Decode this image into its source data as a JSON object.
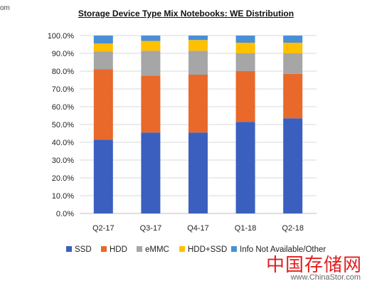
{
  "crop_text": "om",
  "chart_data": {
    "type": "bar",
    "stacked": true,
    "title": "Storage Device Type Mix Notebooks: WE Distribution",
    "xlabel": "",
    "ylabel": "",
    "categories": [
      "Q2-17",
      "Q3-17",
      "Q4-17",
      "Q1-18",
      "Q2-18"
    ],
    "ylim": [
      0,
      100
    ],
    "yticks": [
      "0.0%",
      "10.0%",
      "20.0%",
      "30.0%",
      "40.0%",
      "50.0%",
      "60.0%",
      "70.0%",
      "80.0%",
      "90.0%",
      "100.0%"
    ],
    "grid": true,
    "legend_position": "bottom",
    "series": [
      {
        "name": "SSD",
        "color": "#3a5fbf",
        "values": [
          41.5,
          45.5,
          45.5,
          51.5,
          53.5
        ]
      },
      {
        "name": "HDD",
        "color": "#e8692a",
        "values": [
          39.5,
          32,
          32.5,
          28.5,
          25
        ]
      },
      {
        "name": "eMMC",
        "color": "#a6a6a6",
        "values": [
          10,
          14,
          13.5,
          10,
          11.5
        ]
      },
      {
        "name": "HDD+SSD",
        "color": "#ffc000",
        "values": [
          4.5,
          5.5,
          6,
          6,
          6
        ]
      },
      {
        "name": "Info Not Available/Other",
        "color": "#4a8fd6",
        "values": [
          4.5,
          3,
          2.5,
          4,
          4
        ]
      }
    ]
  },
  "watermark": {
    "chinese": "中国存储网",
    "url": "www.ChinaStor.com"
  }
}
